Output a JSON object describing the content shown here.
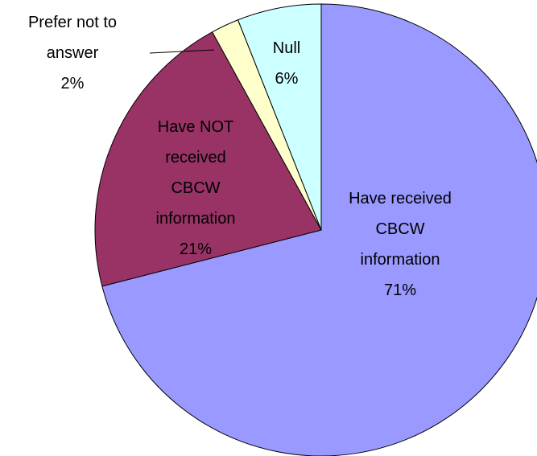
{
  "chart_data": {
    "type": "pie",
    "categories": [
      "Have received CBCW information",
      "Have NOT received CBCW information",
      "Prefer not to answer",
      "Null"
    ],
    "values": [
      71,
      21,
      2,
      6
    ],
    "value_labels": [
      "71%",
      "21%",
      "2%",
      "6%"
    ],
    "colors": [
      "#9999ff",
      "#993366",
      "#ffffcc",
      "#ccffff"
    ]
  }
}
